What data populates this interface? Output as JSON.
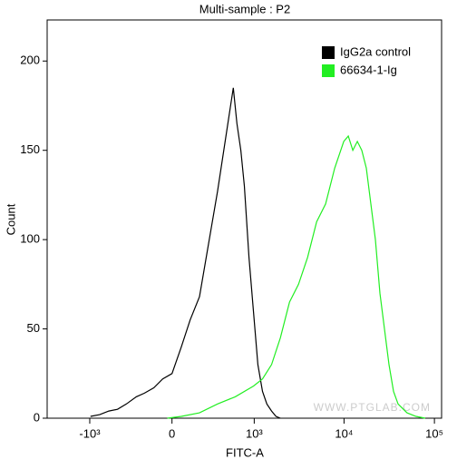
{
  "chart_data": {
    "type": "line",
    "title": "Multi-sample : P2",
    "xlabel": "FITC-A",
    "ylabel": "Count",
    "watermark": "WWW.PTGLAB.COM",
    "xscale": "biexponential",
    "legend": "upper right",
    "xlim": [
      -3000,
      120000
    ],
    "xticks": [
      {
        "value": -1000,
        "label": "-10³"
      },
      0,
      {
        "value": 1000,
        "label": "10³"
      },
      {
        "value": 10000,
        "label": "10⁴"
      },
      {
        "value": 100000,
        "label": "10⁵"
      }
    ],
    "ylim": [
      0,
      223
    ],
    "yticks": [
      0,
      50,
      100,
      150,
      200
    ],
    "series": [
      {
        "name": "IgG2a control",
        "color": "#000000",
        "x": [
          -980,
          -770,
          -600,
          -470,
          -360,
          -260,
          -190,
          -120,
          -60,
          0,
          60,
          120,
          190,
          260,
          360,
          470,
          570,
          630,
          700,
          770,
          870,
          980,
          1100,
          1240,
          1390,
          1570,
          1760,
          1970
        ],
        "values": [
          1,
          2,
          4,
          5,
          8,
          12,
          14,
          17,
          22,
          25,
          40,
          55,
          68,
          95,
          127,
          160,
          185,
          165,
          150,
          130,
          90,
          60,
          30,
          15,
          8,
          4,
          1,
          0
        ]
      },
      {
        "name": "66634-1-Ig",
        "color": "#22ee22",
        "x": [
          -30,
          60,
          190,
          360,
          600,
          980,
          1240,
          1570,
          1970,
          2490,
          3130,
          3950,
          4970,
          6260,
          7880,
          9920,
          11140,
          12500,
          14030,
          15730,
          17660,
          19820,
          22230,
          24950,
          28000,
          31430,
          35260,
          39570,
          49800,
          62600,
          79000
        ],
        "values": [
          0,
          1,
          3,
          8,
          12,
          18,
          22,
          30,
          45,
          65,
          75,
          90,
          110,
          120,
          140,
          155,
          158,
          150,
          155,
          150,
          140,
          120,
          100,
          70,
          50,
          30,
          15,
          8,
          3,
          1,
          0
        ]
      }
    ]
  }
}
